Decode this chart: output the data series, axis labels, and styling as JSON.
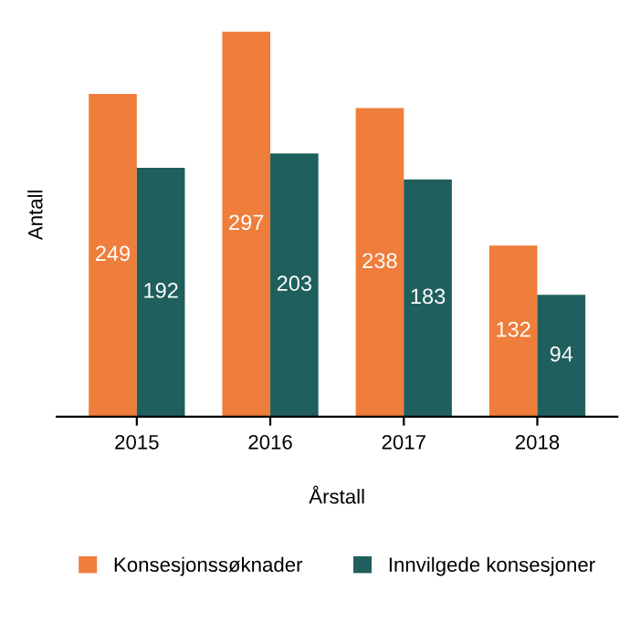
{
  "chart_data": {
    "type": "bar",
    "xlabel": "Årstall",
    "ylabel": "Antall",
    "categories": [
      "2015",
      "2016",
      "2017",
      "2018"
    ],
    "series": [
      {
        "name": "Konsesjonssøknader",
        "color": "#ef7d3b",
        "values": [
          249,
          297,
          238,
          132
        ]
      },
      {
        "name": "Innvilgede konsesjoner",
        "color": "#1f5f5d",
        "values": [
          192,
          203,
          183,
          94
        ]
      }
    ],
    "data_labels": true,
    "grid": false,
    "legend": "bottom"
  }
}
